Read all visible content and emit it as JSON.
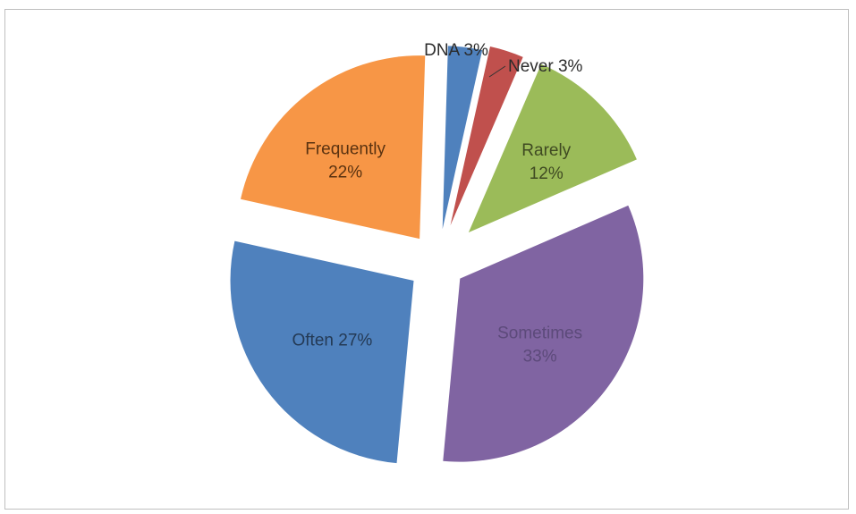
{
  "chart_data": {
    "type": "pie",
    "slices": [
      {
        "category": "DNA",
        "value": 3,
        "label_text": "DNA 3%",
        "label_lines": [
          "DNA 3%"
        ],
        "color": "#4F81BD",
        "label_color": "#2b2b2b",
        "label_inside": false
      },
      {
        "category": "Never",
        "value": 3,
        "label_text": "Never 3%",
        "label_lines": [
          "Never 3%"
        ],
        "color": "#C0504D",
        "label_color": "#2b2b2b",
        "label_inside": false
      },
      {
        "category": "Rarely",
        "value": 12,
        "label_text": "Rarely 12%",
        "label_lines": [
          "Rarely",
          "12%"
        ],
        "color": "#9BBB59",
        "label_color": "#3f4a22",
        "label_inside": true
      },
      {
        "category": "Sometimes",
        "value": 33,
        "label_text": "Sometimes 33%",
        "label_lines": [
          "Sometimes",
          "33%"
        ],
        "color": "#8064A2",
        "label_color": "#5c4a7a",
        "label_inside": true
      },
      {
        "category": "Often",
        "value": 27,
        "label_text": "Often 27%",
        "label_lines": [
          "Often 27%"
        ],
        "color": "#4F81BD",
        "label_color": "#243a55",
        "label_inside": true
      },
      {
        "category": "Frequently",
        "value": 22,
        "label_text": "Frequently 22%",
        "label_lines": [
          "Frequently",
          "22%"
        ],
        "color": "#F79646",
        "label_color": "#5a3210",
        "label_inside": true
      }
    ],
    "legend": "none",
    "exploded": true
  }
}
